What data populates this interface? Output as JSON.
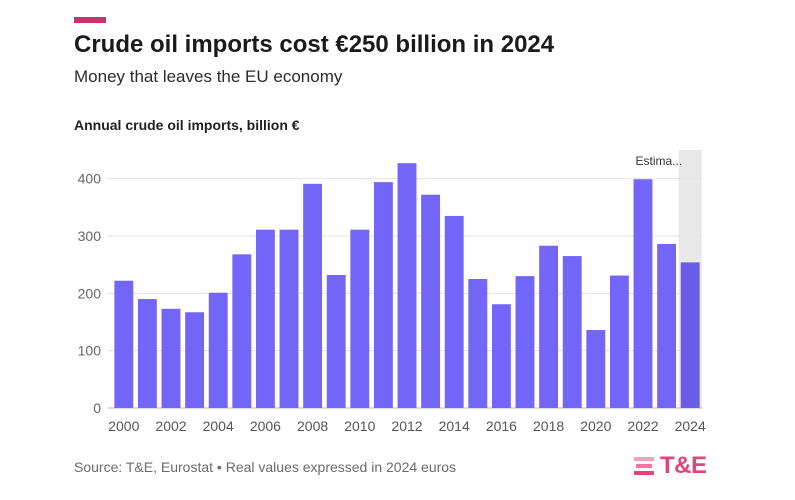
{
  "header": {
    "title": "Crude oil imports cost €250 billion in 2024",
    "subtitle": "Money that leaves the EU economy"
  },
  "chart_data": {
    "type": "bar",
    "title": "Crude oil imports cost €250 billion in 2024",
    "subtitle": "Money that leaves the EU economy",
    "ylabel": "Annual crude oil imports, billion €",
    "xlabel": "",
    "categories": [
      "2000",
      "2001",
      "2002",
      "2003",
      "2004",
      "2005",
      "2006",
      "2007",
      "2008",
      "2009",
      "2010",
      "2011",
      "2012",
      "2013",
      "2014",
      "2015",
      "2016",
      "2017",
      "2018",
      "2019",
      "2020",
      "2021",
      "2022",
      "2023",
      "2024"
    ],
    "values": [
      222,
      190,
      173,
      167,
      201,
      268,
      311,
      311,
      391,
      232,
      311,
      394,
      427,
      372,
      335,
      225,
      181,
      230,
      283,
      265,
      136,
      231,
      399,
      286,
      254
    ],
    "xtick_labels": [
      "2000",
      "2002",
      "2004",
      "2006",
      "2008",
      "2010",
      "2012",
      "2014",
      "2016",
      "2018",
      "2020",
      "2022",
      "2024"
    ],
    "yticks": [
      0,
      100,
      200,
      300,
      400
    ],
    "ylim": [
      0,
      450
    ],
    "grid": true,
    "highlight": {
      "category": "2024",
      "label": "Estima..."
    },
    "colors": {
      "bar": "#7265f7",
      "highlight_bar": "#6b5ce8",
      "highlight_band": "#e8e8e8",
      "accent": "#c7336b"
    }
  },
  "footer": {
    "source": "Source: T&E, Eurostat • Real values expressed in 2024 euros",
    "logo_text": "T&E",
    "logo_color": "#e0467a"
  }
}
